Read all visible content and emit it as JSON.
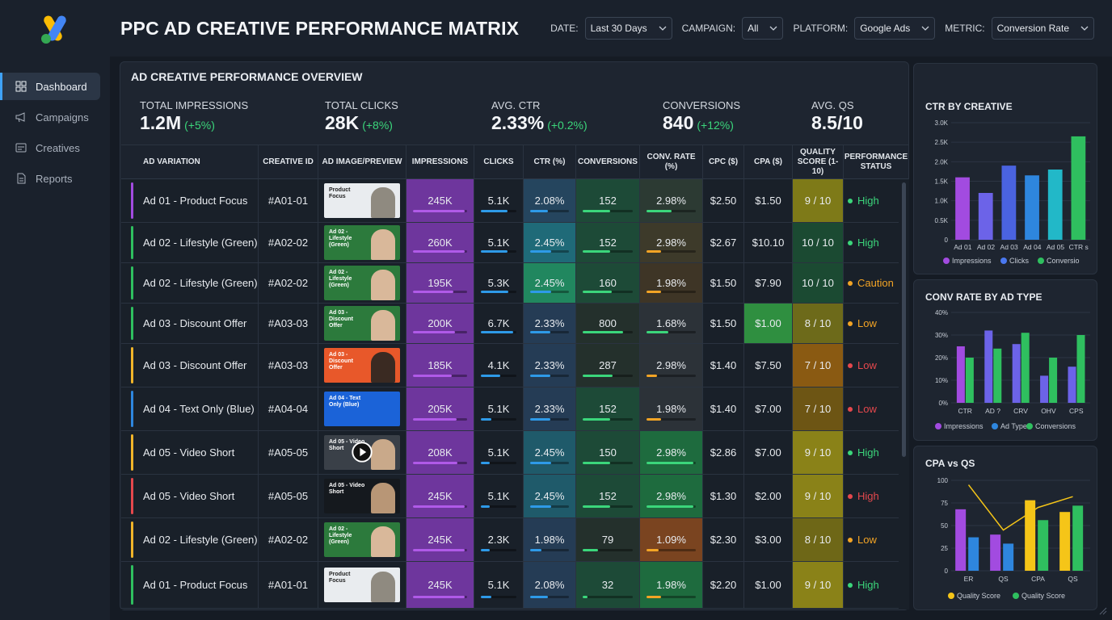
{
  "header": {
    "title": "PPC AD CREATIVE PERFORMANCE MATRIX",
    "filters": [
      {
        "label": "DATE:",
        "value": "Last 30 Days"
      },
      {
        "label": "CAMPAIGN:",
        "value": "All"
      },
      {
        "label": "PLATFORM:",
        "value": "Google Ads"
      },
      {
        "label": "METRIC:",
        "value": "Conversion Rate"
      }
    ]
  },
  "sidebar": {
    "items": [
      {
        "label": "Dashboard",
        "icon": "grid-icon",
        "active": true
      },
      {
        "label": "Campaigns",
        "icon": "megaphone-icon",
        "active": false
      },
      {
        "label": "Creatives",
        "icon": "image-icon",
        "active": false
      },
      {
        "label": "Reports",
        "icon": "document-icon",
        "active": false
      }
    ]
  },
  "overview": {
    "title": "AD CREATIVE PERFORMANCE OVERVIEW",
    "kpis": [
      {
        "label": "TOTAL IMPRESSIONS",
        "value": "1.2M",
        "delta": "(+5%)"
      },
      {
        "label": "TOTAL CLICKS",
        "value": "28K",
        "delta": "(+8%)"
      },
      {
        "label": "AVG. CTR",
        "value": "2.33%",
        "delta": "(+0.2%)"
      },
      {
        "label": "CONVERSIONS",
        "value": "840",
        "delta": "(+12%)"
      },
      {
        "label": "AVG. QS",
        "value": "8.5/10",
        "delta": ""
      }
    ]
  },
  "table": {
    "columns": [
      "AD VARIATION",
      "CREATIVE ID",
      "AD IMAGE/PREVIEW",
      "IMPRESSIONS",
      "CLICKS",
      "CTR (%)",
      "CONVERSIONS",
      "CONV. RATE (%)",
      "CPC ($)",
      "CPA ($)",
      "QUALITY SCORE (1-10)",
      "PERFORMANCE STATUS"
    ],
    "rows": [
      {
        "variation": "Ad 01 - Product Focus",
        "id": "#A01-01",
        "preview": "Product Focus",
        "preview_style": "light",
        "impressions": "245K",
        "clicks": "5.1K",
        "ctr": "2.08%",
        "conversions": "152",
        "conv_rate": "2.98%",
        "cpc": "$2.50",
        "cpa": "$1.50",
        "qs": "9 / 10",
        "status": "High",
        "accent": "#a24be0",
        "status_color": "#3bd67b",
        "imp_fill": 0.95,
        "clk_fill": 0.76,
        "ctr_fill": 0.45,
        "conv_fill": 0.55,
        "cr_fill": 0.5
      },
      {
        "variation": "Ad 02 - Lifestyle (Green)",
        "id": "#A02-02",
        "preview": "Ad 02 - Lifestyle (Green)",
        "preview_style": "green",
        "impressions": "260K",
        "clicks": "5.1K",
        "ctr": "2.45%",
        "conversions": "152",
        "conv_rate": "2.98%",
        "cpc": "$2.67",
        "cpa": "$10.10",
        "qs": "10 / 10",
        "status": "High",
        "accent": "#2fbf5f",
        "status_color": "#3bd67b",
        "imp_fill": 0.95,
        "clk_fill": 0.76,
        "ctr_fill": 0.55,
        "conv_fill": 0.55,
        "cr_fill": 0.3
      },
      {
        "variation": "Ad 02 - Lifestyle (Green)",
        "id": "#A02-02",
        "preview": "Ad 02 - Lifestyle (Green)",
        "preview_style": "green",
        "impressions": "195K",
        "clicks": "5.3K",
        "ctr": "2.45%",
        "conversions": "160",
        "conv_rate": "1.98%",
        "cpc": "$1.50",
        "cpa": "$7.90",
        "qs": "10 / 10",
        "status": "Caution",
        "accent": "#2fbf5f",
        "status_color": "#f3a425",
        "imp_fill": 0.75,
        "clk_fill": 0.78,
        "ctr_fill": 0.55,
        "conv_fill": 0.58,
        "cr_fill": 0.3
      },
      {
        "variation": "Ad 03 - Discount Offer",
        "id": "#A03-03",
        "preview": "Ad 03 - Discount Offer",
        "preview_style": "green",
        "impressions": "200K",
        "clicks": "6.7K",
        "ctr": "2.33%",
        "conversions": "800",
        "conv_rate": "1.68%",
        "cpc": "$1.50",
        "cpa": "$1.00",
        "qs": "8 / 10",
        "status": "Low",
        "accent": "#2fbf5f",
        "status_color": "#f3a425",
        "imp_fill": 0.78,
        "clk_fill": 0.9,
        "ctr_fill": 0.52,
        "conv_fill": 0.8,
        "cr_fill": 0.45
      },
      {
        "variation": "Ad 03 - Discount Offer",
        "id": "#A03-03",
        "preview": "Ad 03 - Discount Offer",
        "preview_style": "orange",
        "impressions": "185K",
        "clicks": "4.1K",
        "ctr": "2.33%",
        "conversions": "287",
        "conv_rate": "2.98%",
        "cpc": "$1.40",
        "cpa": "$7.50",
        "qs": "7 / 10",
        "status": "Low",
        "accent": "#f0b429",
        "status_color": "#e5484d",
        "imp_fill": 0.72,
        "clk_fill": 0.55,
        "ctr_fill": 0.52,
        "conv_fill": 0.6,
        "cr_fill": 0.22
      },
      {
        "variation": "Ad 04 - Text Only (Blue)",
        "id": "#A04-04",
        "preview": "Ad 04 - Text Only (Blue)",
        "preview_style": "blue",
        "impressions": "205K",
        "clicks": "5.1K",
        "ctr": "2.33%",
        "conversions": "152",
        "conv_rate": "1.98%",
        "cpc": "$1.40",
        "cpa": "$7.00",
        "qs": "7 / 10",
        "status": "Low",
        "accent": "#2e86de",
        "status_color": "#e5484d",
        "imp_fill": 0.8,
        "clk_fill": 0.3,
        "ctr_fill": 0.52,
        "conv_fill": 0.55,
        "cr_fill": 0.3
      },
      {
        "variation": "Ad 05 - Video Short",
        "id": "#A05-05",
        "preview": "Ad 05 - Video Short",
        "preview_style": "video",
        "impressions": "208K",
        "clicks": "5.1K",
        "ctr": "2.45%",
        "conversions": "150",
        "conv_rate": "2.98%",
        "cpc": "$2.86",
        "cpa": "$7.00",
        "qs": "9 / 10",
        "status": "High",
        "accent": "#f0b429",
        "status_color": "#3bd67b",
        "imp_fill": 0.82,
        "clk_fill": 0.25,
        "ctr_fill": 0.55,
        "conv_fill": 0.55,
        "cr_fill": 0.95
      },
      {
        "variation": "Ad 05 - Video Short",
        "id": "#A05-05",
        "preview": "Ad 05 - Video Short",
        "preview_style": "dark",
        "impressions": "245K",
        "clicks": "5.1K",
        "ctr": "2.45%",
        "conversions": "152",
        "conv_rate": "2.98%",
        "cpc": "$1.30",
        "cpa": "$2.00",
        "qs": "9 / 10",
        "status": "High",
        "accent": "#e5484d",
        "status_color": "#e5484d",
        "imp_fill": 0.95,
        "clk_fill": 0.25,
        "ctr_fill": 0.55,
        "conv_fill": 0.55,
        "cr_fill": 0.95
      },
      {
        "variation": "Ad 02 - Lifestyle (Green)",
        "id": "#A02-02",
        "preview": "Ad 02 - Lifestyle (Green)",
        "preview_style": "green",
        "impressions": "245K",
        "clicks": "2.3K",
        "ctr": "1.98%",
        "conversions": "79",
        "conv_rate": "1.09%",
        "cpc": "$2.30",
        "cpa": "$3.00",
        "qs": "8 / 10",
        "status": "Low",
        "accent": "#f0b429",
        "status_color": "#f3a425",
        "imp_fill": 0.95,
        "clk_fill": 0.25,
        "ctr_fill": 0.3,
        "conv_fill": 0.3,
        "cr_fill": 0.25
      },
      {
        "variation": "Ad 01 - Product Focus",
        "id": "#A01-01",
        "preview": "Product Focus",
        "preview_style": "light",
        "impressions": "245K",
        "clicks": "5.1K",
        "ctr": "2.08%",
        "conversions": "32",
        "conv_rate": "1.98%",
        "cpc": "$2.20",
        "cpa": "$1.00",
        "qs": "9 / 10",
        "status": "High",
        "accent": "#2fbf5f",
        "status_color": "#3bd67b",
        "imp_fill": 0.95,
        "clk_fill": 0.3,
        "ctr_fill": 0.45,
        "conv_fill": 0.1,
        "cr_fill": 0.3
      }
    ]
  },
  "chart_data": [
    {
      "type": "bar",
      "title": "CTR BY CREATIVE",
      "categories": [
        "Ad 01",
        "Ad 02",
        "Ad 03",
        "Ad 04",
        "Ad 05",
        "CTR s"
      ],
      "values": [
        1600,
        1200,
        1900,
        1650,
        1800,
        2650
      ],
      "bar_colors": [
        "#a24be0",
        "#6c63e8",
        "#4a63e0",
        "#2e86de",
        "#22b8c8",
        "#2fbf5f"
      ],
      "ylim": [
        0,
        3000
      ],
      "yticks": [
        "3.0K",
        "2.5K",
        "2.0K",
        "1.5K",
        "1.0K",
        "0.5K",
        "0"
      ],
      "legend": [
        {
          "name": "Impressions",
          "color": "#a24be0"
        },
        {
          "name": "Clicks",
          "color": "#4a78f0"
        },
        {
          "name": "Conversio",
          "color": "#2fbf5f"
        }
      ]
    },
    {
      "type": "bar",
      "title": "CONV RATE BY AD TYPE",
      "categories": [
        "CTR",
        "AD ?",
        "CRV",
        "OHV",
        "CPS"
      ],
      "series": [
        {
          "name": "",
          "color": "#a24be0",
          "values": [
            25,
            32,
            26,
            12,
            16
          ]
        },
        {
          "name": "",
          "color": "#2fbf5f",
          "values": [
            20,
            24,
            31,
            20,
            30
          ]
        }
      ],
      "bar_colors_a": [
        "#a24be0",
        "#6c63e8",
        "#6c63e8",
        "#6c63e8",
        "#6c63e8"
      ],
      "ylim": [
        0,
        40
      ],
      "yticks": [
        "40%",
        "30%",
        "20%",
        "10%",
        "0%"
      ],
      "legend": [
        {
          "name": "Impressions",
          "color": "#a24be0"
        },
        {
          "name": "Ad Type",
          "color": "#2e86de"
        },
        {
          "name": "Conversions",
          "color": "#2fbf5f"
        }
      ]
    },
    {
      "type": "bar",
      "title": "CPA vs QS",
      "categories": [
        "ER",
        "QS",
        "CPA",
        "QS"
      ],
      "series": [
        {
          "name": "",
          "values": [
            68,
            40,
            78,
            65
          ]
        },
        {
          "name": "",
          "values": [
            37,
            30,
            56,
            72
          ]
        }
      ],
      "colors_a": [
        "#a24be0",
        "#a24be0",
        "#f5c518",
        "#f5c518"
      ],
      "colors_b": [
        "#2e86de",
        "#2e86de",
        "#2fbf5f",
        "#2fbf5f"
      ],
      "line": [
        95,
        45,
        70,
        82
      ],
      "line_color": "#f5c518",
      "ylim": [
        0,
        100
      ],
      "yticks": [
        "100",
        "75",
        "50",
        "25",
        "0"
      ],
      "legend": [
        {
          "name": "Quality Score",
          "color": "#f5c518"
        },
        {
          "name": "Quality Score",
          "color": "#2fbf5f"
        }
      ]
    }
  ]
}
